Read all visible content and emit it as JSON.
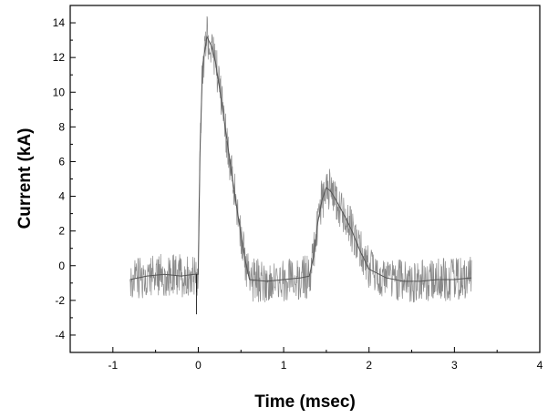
{
  "chart_data": {
    "type": "line",
    "xlabel": "Time (msec)",
    "ylabel": "Current (kA)",
    "xlim": [
      -1.5,
      4
    ],
    "ylim": [
      -5,
      15
    ],
    "x_ticks": [
      -1,
      0,
      1,
      2,
      3,
      4
    ],
    "x_tick_labels": [
      "-1",
      "0",
      "1",
      "2",
      "3",
      "4"
    ],
    "y_ticks": [
      -4,
      -2,
      0,
      2,
      4,
      6,
      8,
      10,
      12,
      14
    ],
    "y_tick_labels": [
      "-4",
      "-2",
      "0",
      "2",
      "4",
      "6",
      "8",
      "10",
      "12",
      "14"
    ],
    "grid": false,
    "legend": "none",
    "series": [
      {
        "line_color": "#555555",
        "x": [
          -0.8,
          -0.6,
          -0.4,
          -0.2,
          -0.05,
          0.0,
          0.02,
          0.05,
          0.1,
          0.15,
          0.2,
          0.25,
          0.3,
          0.4,
          0.5,
          0.55,
          0.6,
          0.8,
          1.0,
          1.2,
          1.3,
          1.35,
          1.4,
          1.45,
          1.5,
          1.55,
          1.6,
          1.7,
          1.8,
          1.9,
          2.0,
          2.2,
          2.4,
          2.6,
          2.8,
          3.0,
          3.2
        ],
        "y": [
          -0.8,
          -0.6,
          -0.5,
          -0.6,
          -0.5,
          -0.5,
          6.5,
          11.5,
          13.2,
          12.7,
          11.8,
          10.2,
          8.5,
          5.0,
          1.8,
          0.3,
          -0.8,
          -0.9,
          -0.8,
          -0.7,
          -0.6,
          0.5,
          2.5,
          3.8,
          4.5,
          4.3,
          3.9,
          3.0,
          2.0,
          0.8,
          -0.2,
          -0.7,
          -0.9,
          -0.9,
          -0.8,
          -0.8,
          -0.7
        ]
      }
    ]
  }
}
